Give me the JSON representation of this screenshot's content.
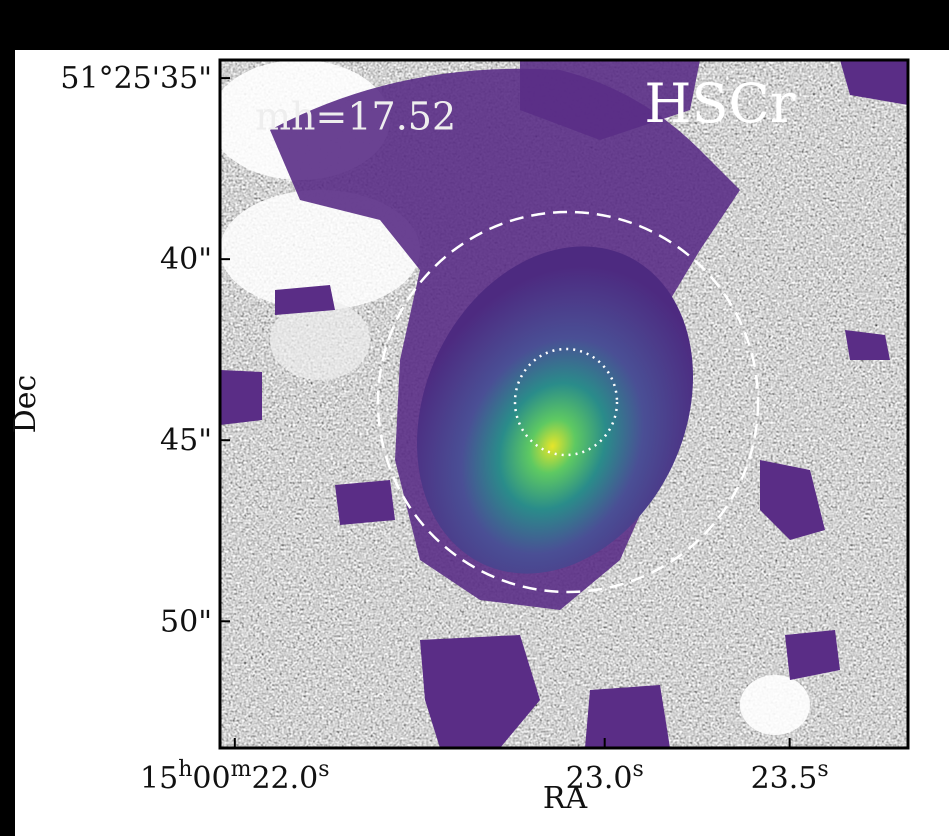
{
  "chart_data": {
    "type": "image",
    "title": "HSCr",
    "annotation": "mh=17.52",
    "x_label": "RA",
    "y_label": "Dec",
    "xlim": [
      21.96,
      23.82
    ],
    "ylim": [
      34.5,
      53.5
    ],
    "xticks": [
      {
        "value": 22.0,
        "label": "15h00m22.0s"
      },
      {
        "value": 23.0,
        "label": "23.0s"
      },
      {
        "value": 23.5,
        "label": "23.5s"
      }
    ],
    "yticks": [
      {
        "value": 35,
        "label": "51°25'35\""
      },
      {
        "value": 40,
        "label": "40\""
      },
      {
        "value": 45,
        "label": "45\""
      },
      {
        "value": 50,
        "label": "50\""
      }
    ]
  }
}
